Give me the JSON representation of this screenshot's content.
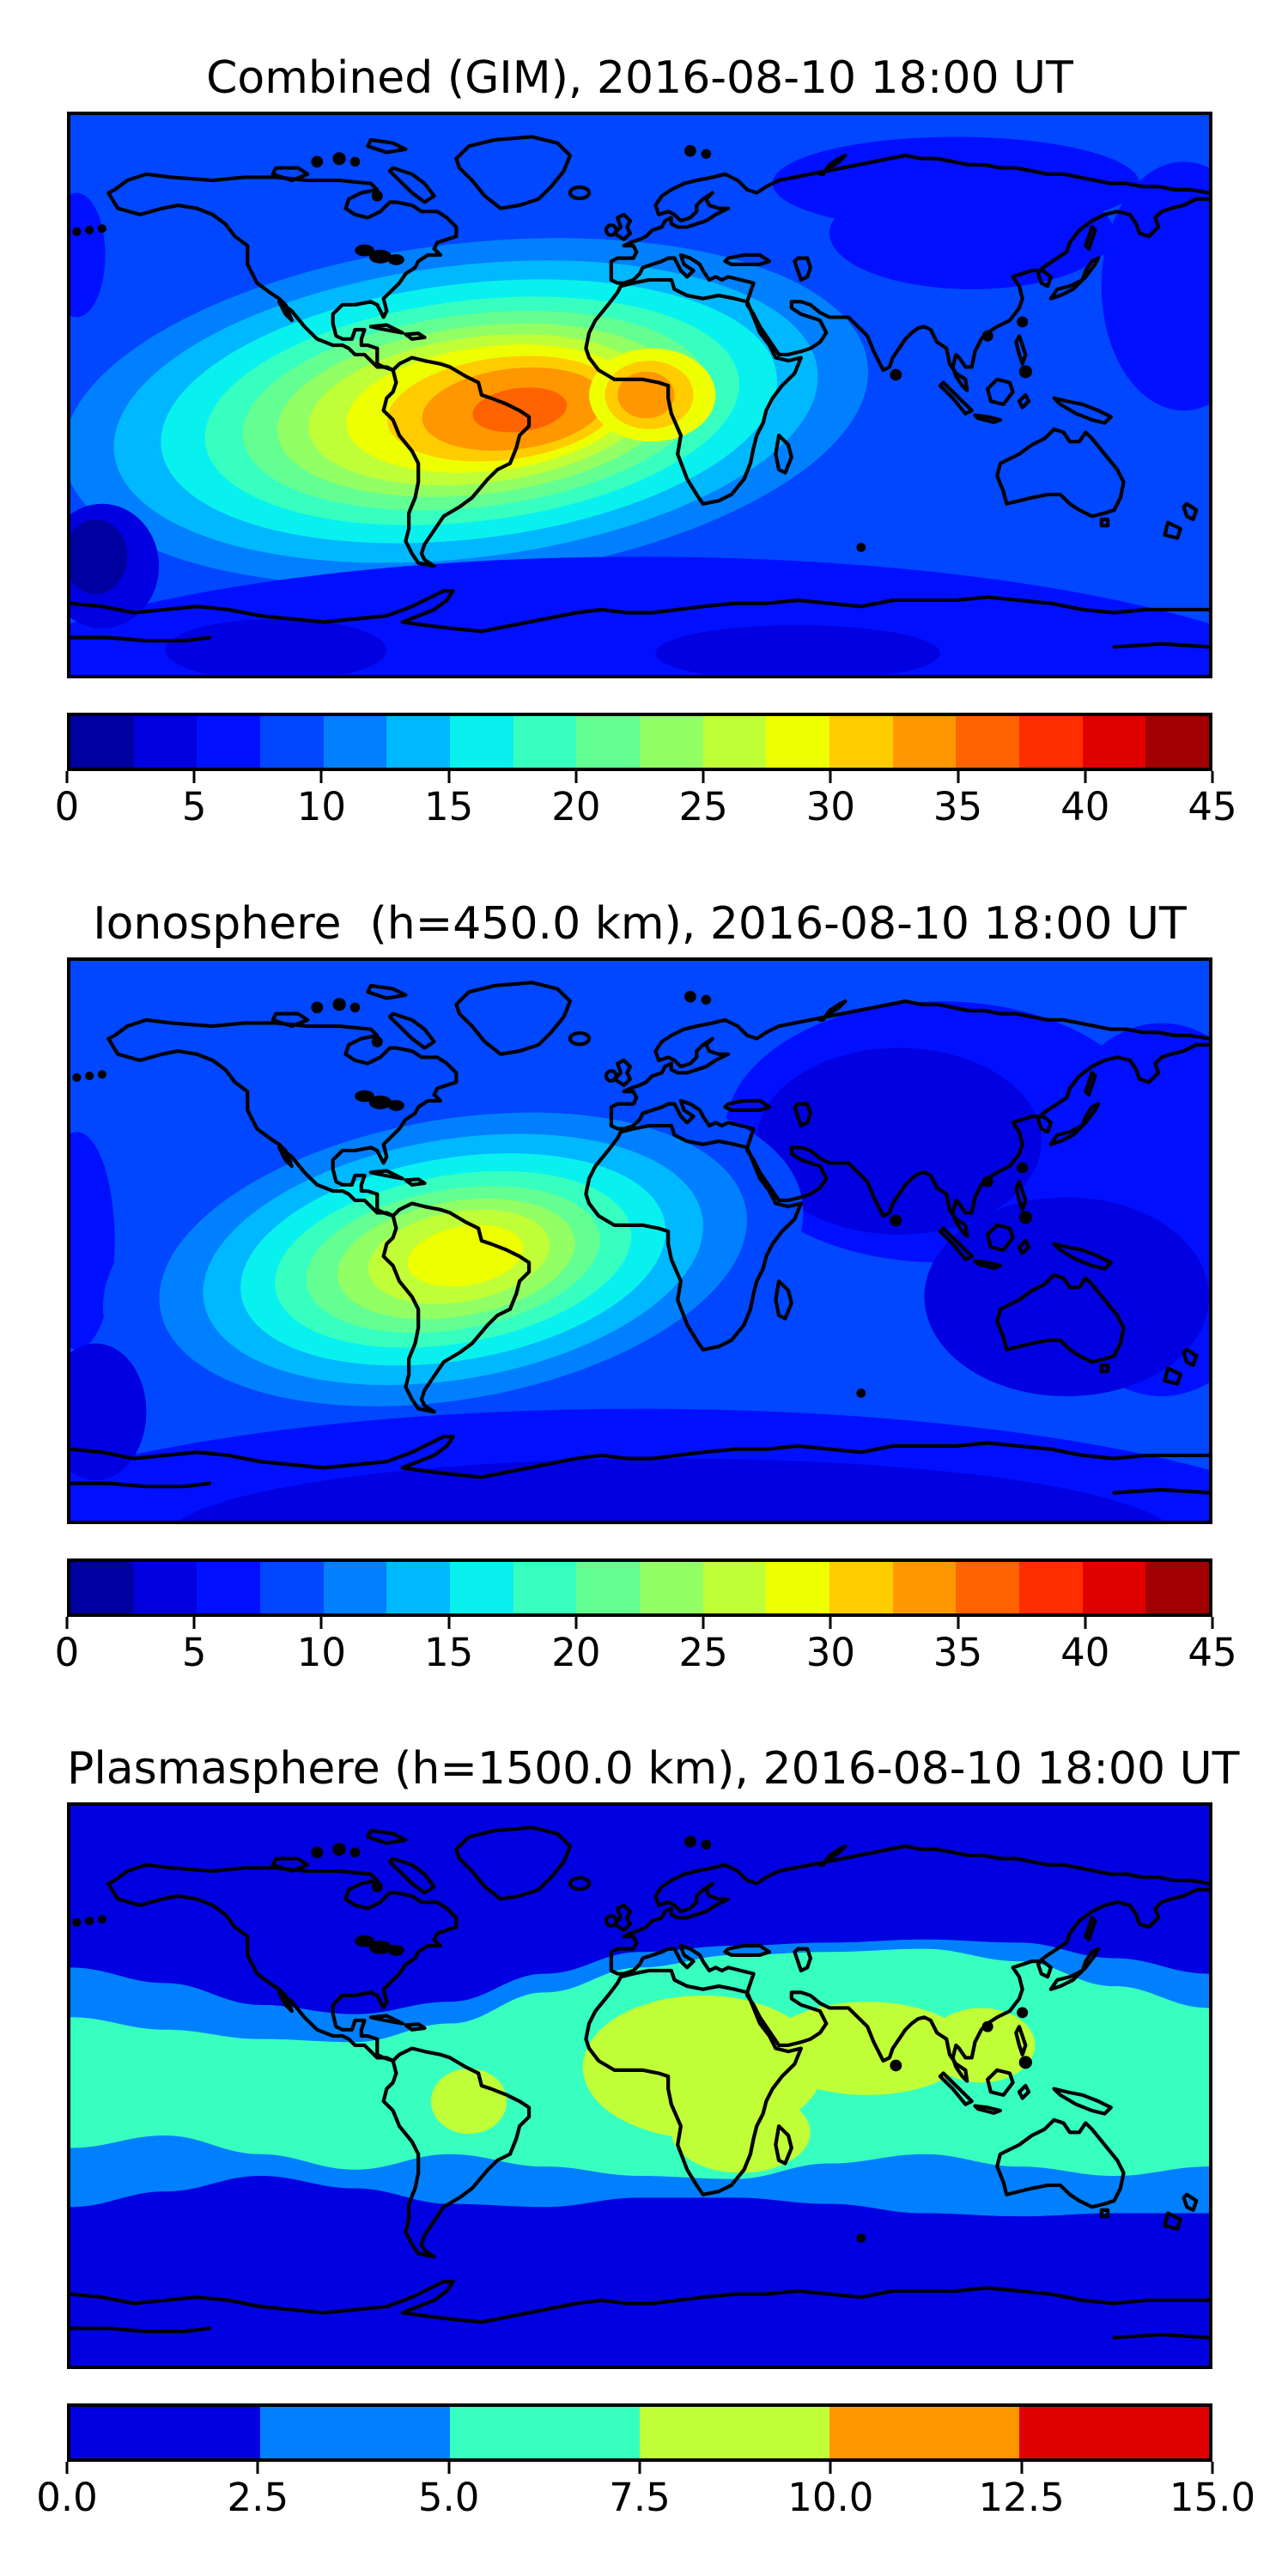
{
  "figure": {
    "background_color": "#ffffff",
    "frame_color": "#000000",
    "coastline_color": "#000000"
  },
  "panels": [
    {
      "id": "combined-gim",
      "title": "Combined (GIM), 2016-08-10 18:00 UT",
      "colorbar": {
        "orientation": "horizontal",
        "tick_labels": [
          "0",
          "5",
          "10",
          "15",
          "20",
          "25",
          "30",
          "35",
          "40",
          "45"
        ],
        "vmin": 0,
        "vmax": 45,
        "segments": [
          "#0000A0",
          "#0000E0",
          "#0010FF",
          "#0047FF",
          "#0080FF",
          "#00B8FF",
          "#09F1EE",
          "#37FFC0",
          "#64FF92",
          "#92FF64",
          "#C0FF37",
          "#EEFF01",
          "#FFCC00",
          "#FF9700",
          "#FF6300",
          "#FF2E00",
          "#E00000",
          "#A00000"
        ]
      }
    },
    {
      "id": "ionosphere",
      "title": "Ionosphere  (h=450.0 km), 2016-08-10 18:00 UT",
      "colorbar": {
        "orientation": "horizontal",
        "tick_labels": [
          "0",
          "5",
          "10",
          "15",
          "20",
          "25",
          "30",
          "35",
          "40",
          "45"
        ],
        "vmin": 0,
        "vmax": 45,
        "segments": [
          "#0000A0",
          "#0000E0",
          "#0010FF",
          "#0047FF",
          "#0080FF",
          "#00B8FF",
          "#09F1EE",
          "#37FFC0",
          "#64FF92",
          "#92FF64",
          "#C0FF37",
          "#EEFF01",
          "#FFCC00",
          "#FF9700",
          "#FF6300",
          "#FF2E00",
          "#E00000",
          "#A00000"
        ]
      }
    },
    {
      "id": "plasmasphere",
      "title": "Plasmasphere (h=1500.0 km), 2016-08-10 18:00 UT",
      "colorbar": {
        "orientation": "horizontal",
        "tick_labels": [
          "0.0",
          "2.5",
          "5.0",
          "7.5",
          "10.0",
          "12.5",
          "15.0"
        ],
        "vmin": 0,
        "vmax": 15,
        "segments": [
          "#0000E0",
          "#0080FF",
          "#37FFC0",
          "#C0FF37",
          "#FF9700",
          "#E00000"
        ]
      }
    }
  ],
  "chart_data": [
    {
      "type": "heatmap",
      "subtype": "filled-contour world map, equirectangular projection (lon -180..180, lat -90..90), coastlines overlaid",
      "title": "Combined (GIM), 2016-08-10 18:00 UT",
      "colormap": "jet (discrete)",
      "levels": [
        0,
        2.5,
        5,
        7.5,
        10,
        12.5,
        15,
        17.5,
        20,
        22.5,
        25,
        27.5,
        30,
        32.5,
        35,
        37.5,
        40,
        42.5,
        45
      ],
      "colorbar_ticks": [
        0,
        5,
        10,
        15,
        20,
        25,
        30,
        35,
        40,
        45
      ],
      "legend_position": "horizontal colorbar below map",
      "units_label": "none shown",
      "approx_maximum": {
        "value": 37,
        "lon": -40,
        "lat": -6
      },
      "pattern": [
        "Low-latitude enhancement elongated WSW-ENE from the central Pacific (~150W) across South America and the Atlantic to West Africa (~20E)",
        "Dark-orange core ~35-37.5 over NE South America and the adjacent equatorial Atlantic (55W-25W, 0 to -12 lat)",
        "Secondary orange core ~30-35 over the Gulf of Guinea (~0-10E, 10N to -10S)",
        "Values 10-20 at northern mid-latitudes; ~10-15 over the Arctic",
        "Darker <7.5 over Siberia, the NW Pacific and south of ~55S; darkest <2.5 patch near 170W, -55 lat"
      ]
    },
    {
      "type": "heatmap",
      "subtype": "filled-contour world map, equirectangular projection (lon -180..180, lat -90..90), coastlines overlaid",
      "title": "Ionosphere  (h=450.0 km), 2016-08-10 18:00 UT",
      "colormap": "jet (discrete)",
      "levels": [
        0,
        2.5,
        5,
        7.5,
        10,
        12.5,
        15,
        17.5,
        20,
        22.5,
        25,
        27.5,
        30,
        32.5,
        35,
        37.5,
        40,
        42.5,
        45
      ],
      "colorbar_ticks": [
        0,
        5,
        10,
        15,
        20,
        25,
        30,
        35,
        40,
        45
      ],
      "legend_position": "horizontal colorbar below map",
      "units_label": "none shown",
      "approx_maximum": {
        "value": 29,
        "lon": -55,
        "lat": -5
      },
      "pattern": [
        "Same anomaly as combined map but weaker: yellow peak 27.5-30 centered over eastern South America near 55W, -5 lat",
        "Concentric green/cyan/blue rings spreading west across the Pacific and northeast toward West Africa and Europe",
        "5-10 over Europe, North Atlantic and the Arctic",
        "<5 over central/eastern Asia, the eastern Indian Ocean and Australia, and south of ~50S"
      ]
    },
    {
      "type": "heatmap",
      "subtype": "filled-contour world map, equirectangular projection (lon -180..180, lat -90..90), coastlines overlaid",
      "title": "Plasmasphere (h=1500.0 km), 2016-08-10 18:00 UT",
      "colormap": "jet (discrete)",
      "levels": [
        0,
        2.5,
        5,
        7.5,
        10,
        12.5,
        15
      ],
      "colorbar_ticks": [
        0,
        2.5,
        5,
        7.5,
        10,
        12.5,
        15
      ],
      "legend_position": "horizontal colorbar below map",
      "units_label": "none shown",
      "approx_maximum": {
        "value": 9,
        "lon": 30,
        "lat": 5
      },
      "pattern": [
        "Zonally banded field: <2.5 poleward of about 45-50 deg latitude (dark blue)",
        "2.5-5 band (bright blue) between roughly 25-45 deg latitude in both hemispheres, wavy with longitude",
        "5-7.5 equatorial band (turquoise) spanning all longitudes, ~plus/minus 20-40 deg wide",
        "7.5-10 (yellow-green) region over Africa, the Middle East and South/Southeast Asia (~15W-115E, 25S-30N)",
        "Small 7.5-10 patch over northern South America (~66W-42W, 15S-5N)"
      ]
    }
  ]
}
